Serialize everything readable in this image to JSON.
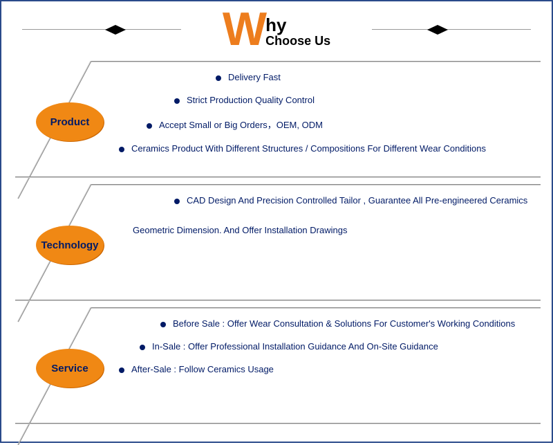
{
  "header": {
    "big_letter": "W",
    "rest": "hy",
    "subtitle": "Choose Us"
  },
  "colors": {
    "accent": "#f08814",
    "text": "#001a66",
    "border": "#2a4a8a"
  },
  "sections": [
    {
      "badge": "Product",
      "lines": [
        {
          "indent": 180,
          "text": "Delivery Fast"
        },
        {
          "indent": 120,
          "text": "Strict Production Quality Control"
        },
        {
          "indent": 80,
          "text": "Accept Small or Big Orders，OEM, ODM"
        },
        {
          "indent": 40,
          "text": "Ceramics Product With Different Structures / Compositions For Different Wear Conditions"
        }
      ]
    },
    {
      "badge": "Technology",
      "lines": [
        {
          "indent": 120,
          "text": "CAD Design And Precision Controlled Tailor , Guarantee All Pre-engineered Ceramics",
          "bullet": true
        },
        {
          "indent": 60,
          "text": "Geometric Dimension. And Offer Installation Drawings",
          "bullet": false
        }
      ]
    },
    {
      "badge": "Service",
      "lines": [
        {
          "indent": 100,
          "text": "Before Sale : Offer Wear Consultation & Solutions For Customer's Working Conditions"
        },
        {
          "indent": 70,
          "text": "In-Sale : Offer Professional Installation Guidance And On-Site Guidance"
        },
        {
          "indent": 40,
          "text": "After-Sale : Follow Ceramics Usage"
        }
      ]
    }
  ]
}
